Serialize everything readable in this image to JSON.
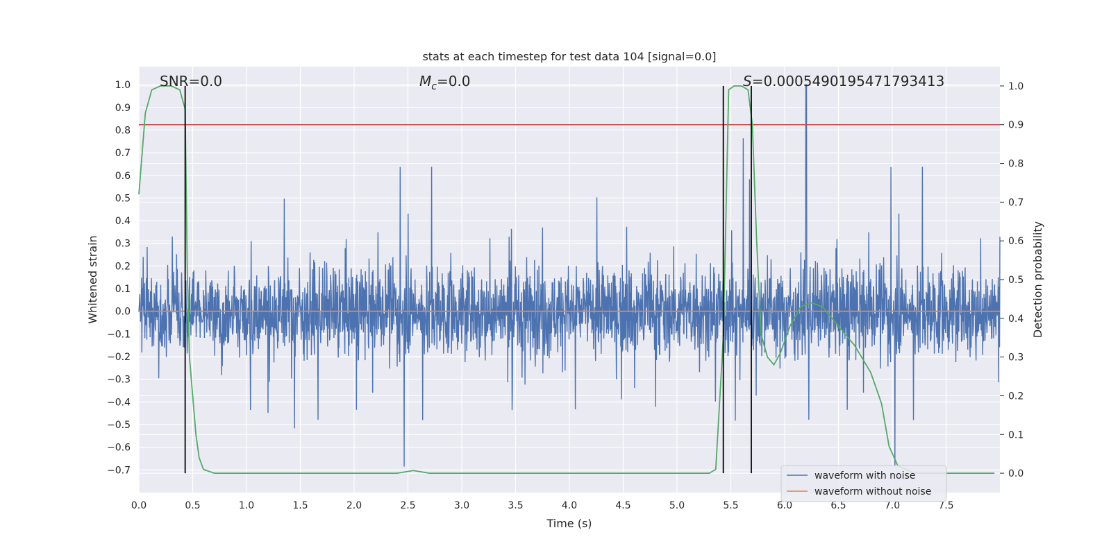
{
  "chart_data": {
    "type": "line",
    "title": "stats at each timestep for test data 104 [signal=0.0]",
    "xlabel": "Time (s)",
    "ylabel": "Whitened strain",
    "y2label": "Detection probability",
    "xlim": [
      0.0,
      8.0
    ],
    "ylim": [
      -0.8,
      1.08
    ],
    "y2lim": [
      -0.05,
      1.05
    ],
    "xticks": [
      0.0,
      0.5,
      1.0,
      1.5,
      2.0,
      2.5,
      3.0,
      3.5,
      4.0,
      4.5,
      5.0,
      5.5,
      6.0,
      6.5,
      7.0,
      7.5
    ],
    "xtick_labels": [
      "0.0",
      "0.5",
      "1.0",
      "1.5",
      "2.0",
      "2.5",
      "3.0",
      "3.5",
      "4.0",
      "4.5",
      "5.0",
      "5.5",
      "6.0",
      "6.5",
      "7.0",
      "7.5"
    ],
    "yticks": [
      1.0,
      0.9,
      0.8,
      0.7,
      0.6,
      0.5,
      0.4,
      0.3,
      0.2,
      0.1,
      0.0,
      -0.1,
      -0.2,
      -0.3,
      -0.4,
      -0.5,
      -0.6,
      -0.7
    ],
    "ytick_labels": [
      "1.0",
      "0.9",
      "0.8",
      "0.7",
      "0.6",
      "0.5",
      "0.4",
      "0.3",
      "0.2",
      "0.1",
      "0.0",
      "−0.1",
      "−0.2",
      "−0.3",
      "−0.4",
      "−0.5",
      "−0.6",
      "−0.7"
    ],
    "y2ticks": [
      1.0,
      0.9,
      0.8,
      0.7,
      0.6,
      0.5,
      0.4,
      0.3,
      0.2,
      0.1,
      0.0
    ],
    "y2tick_labels": [
      "1.0",
      "0.9",
      "0.8",
      "0.7",
      "0.6",
      "0.5",
      "0.4",
      "0.3",
      "0.2",
      "0.1",
      "0.0"
    ],
    "annotations": {
      "snr_label": "SNR=0.0",
      "mc_symbol": "M",
      "mc_sub": "c",
      "mc_value": "=0.0",
      "s_symbol": "S",
      "s_value": "=0.0005490195471793413"
    },
    "series": [
      {
        "name": "waveform with noise",
        "color": "#4c72b0",
        "description": "noisy whitened strain, roughly symmetric about 0 with spikes up to ~1.0 and down to ~-0.7",
        "seed": 104,
        "max_peak": {
          "x": 6.2,
          "y": 1.0
        }
      },
      {
        "name": "waveform without noise",
        "color": "#dd8452",
        "values_constant": 0.0
      },
      {
        "name": "detection probability",
        "color": "#55a868",
        "axis": "right",
        "x": [
          0.0,
          0.06,
          0.12,
          0.2,
          0.3,
          0.38,
          0.43,
          0.45,
          0.47,
          0.5,
          0.53,
          0.56,
          0.6,
          0.7,
          1.0,
          2.4,
          2.55,
          2.7,
          3.0,
          5.3,
          5.36,
          5.43,
          5.48,
          5.53,
          5.6,
          5.66,
          5.7,
          5.74,
          5.78,
          5.84,
          5.9,
          5.96,
          6.05,
          6.15,
          6.25,
          6.35,
          6.5,
          6.65,
          6.8,
          6.9,
          6.97,
          7.05,
          7.2,
          7.95
        ],
        "values": [
          0.72,
          0.93,
          0.99,
          1.0,
          1.0,
          0.99,
          0.94,
          0.52,
          0.3,
          0.2,
          0.1,
          0.04,
          0.01,
          0.0,
          0.0,
          0.0,
          0.007,
          0.0,
          0.0,
          0.0,
          0.01,
          0.35,
          0.99,
          1.0,
          1.0,
          0.99,
          0.9,
          0.6,
          0.36,
          0.3,
          0.28,
          0.31,
          0.38,
          0.43,
          0.44,
          0.43,
          0.38,
          0.33,
          0.26,
          0.18,
          0.07,
          0.02,
          0.0,
          0.0
        ]
      }
    ],
    "threshold_line": {
      "axis": "right",
      "value": 0.9,
      "color": "#c44e52"
    },
    "vertical_lines": [
      0.43,
      5.43,
      5.69
    ],
    "legend": {
      "placement": "bottom-right",
      "entries": [
        "waveform with noise",
        "waveform without noise"
      ]
    }
  }
}
